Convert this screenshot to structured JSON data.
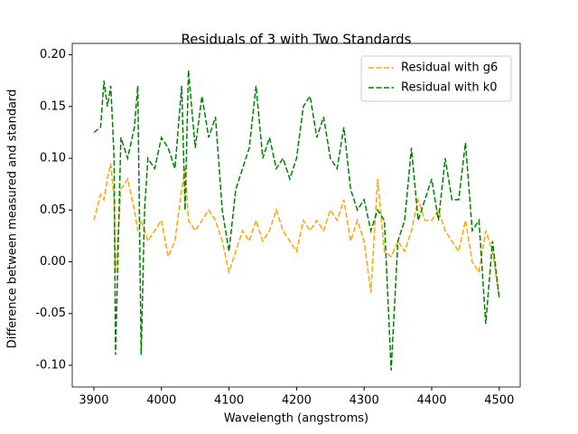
{
  "chart_data": {
    "type": "line",
    "title": "Residuals of 3 with Two Standards",
    "xlabel": "Wavelength (angstroms)",
    "ylabel": "Difference between measured and standard",
    "x": [
      3900,
      3910,
      3915,
      3920,
      3925,
      3930,
      3932,
      3940,
      3950,
      3960,
      3965,
      3970,
      3975,
      3980,
      3990,
      4000,
      4010,
      4020,
      4030,
      4035,
      4040,
      4050,
      4060,
      4070,
      4080,
      4090,
      4100,
      4110,
      4120,
      4130,
      4140,
      4150,
      4160,
      4170,
      4180,
      4190,
      4200,
      4210,
      4220,
      4230,
      4240,
      4250,
      4260,
      4270,
      4280,
      4290,
      4300,
      4310,
      4320,
      4330,
      4340,
      4350,
      4360,
      4370,
      4380,
      4390,
      4400,
      4410,
      4420,
      4430,
      4440,
      4450,
      4460,
      4470,
      4480,
      4490,
      4500
    ],
    "series": [
      {
        "name": "Residual with g6",
        "color": "orange",
        "values": [
          0.04,
          0.065,
          0.06,
          0.08,
          0.095,
          0.06,
          -0.01,
          0.07,
          0.08,
          0.05,
          0.03,
          0.04,
          0.03,
          0.02,
          0.03,
          0.04,
          0.005,
          0.02,
          0.07,
          0.09,
          0.04,
          0.03,
          0.04,
          0.05,
          0.04,
          0.02,
          -0.01,
          0.01,
          0.03,
          0.02,
          0.04,
          0.02,
          0.03,
          0.05,
          0.03,
          0.02,
          0.01,
          0.04,
          0.03,
          0.04,
          0.03,
          0.05,
          0.04,
          0.06,
          0.02,
          0.04,
          0.02,
          -0.03,
          0.08,
          0.01,
          0.005,
          0.02,
          0.01,
          0.03,
          0.06,
          0.04,
          0.04,
          0.05,
          0.03,
          0.02,
          0.01,
          0.04,
          0.0,
          -0.01,
          0.03,
          0.01,
          -0.035
        ]
      },
      {
        "name": "Residual with k0",
        "color": "green",
        "values": [
          0.125,
          0.13,
          0.175,
          0.15,
          0.17,
          0.1,
          -0.09,
          0.12,
          0.1,
          0.13,
          0.17,
          -0.09,
          0.05,
          0.1,
          0.09,
          0.12,
          0.11,
          0.09,
          0.17,
          0.05,
          0.185,
          0.11,
          0.16,
          0.12,
          0.14,
          0.05,
          0.01,
          0.07,
          0.09,
          0.11,
          0.17,
          0.1,
          0.12,
          0.09,
          0.1,
          0.08,
          0.1,
          0.15,
          0.16,
          0.12,
          0.14,
          0.1,
          0.09,
          0.13,
          0.07,
          0.05,
          0.06,
          0.03,
          0.05,
          0.04,
          -0.105,
          0.02,
          0.04,
          0.11,
          0.04,
          0.06,
          0.08,
          0.04,
          0.1,
          0.06,
          0.06,
          0.115,
          0.03,
          0.04,
          -0.06,
          0.02,
          -0.035
        ]
      }
    ],
    "xlim": [
      3868,
      4531
    ],
    "ylim": [
      -0.121,
      0.211
    ],
    "xticks": [
      3900,
      4000,
      4100,
      4200,
      4300,
      4400,
      4500
    ],
    "yticks": [
      {
        "value": -0.1,
        "label": "-0.10"
      },
      -0.05,
      {
        "value": 0,
        "label": "0.00"
      },
      0.05,
      {
        "value": 0.1,
        "label": "0.10"
      },
      0.15,
      {
        "value": 0.2,
        "label": "0.20"
      }
    ],
    "line_style": "dashed",
    "legend": "upper right"
  }
}
